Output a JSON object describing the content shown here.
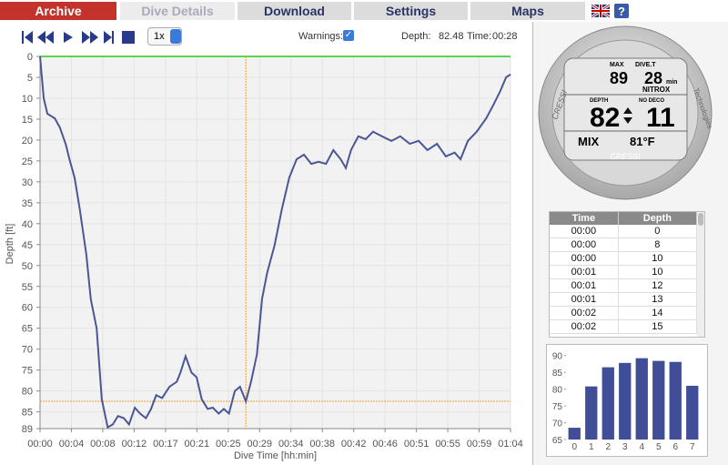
{
  "tabs": [
    "Archive",
    "Dive Details",
    "Download",
    "Settings",
    "Maps"
  ],
  "toolbar": {
    "speed": "1x",
    "warnings_label": "Warnings:",
    "depth_label": "Depth:",
    "depth": 82.48,
    "time_label": "Time:",
    "time": "00:28"
  },
  "chart_data": [
    {
      "type": "line",
      "ylabel": "Depth [ft]",
      "xlabel": "Dive Time [hh:min]",
      "color": "#4b5694",
      "surface_color": "#22cc22",
      "cursor_color": "#f0a030",
      "y_inverted": true,
      "grid": true,
      "x": [
        0,
        0.3,
        0.5,
        1,
        2,
        2.7,
        3.5,
        4,
        4.7,
        5.4,
        6.3,
        6.9,
        7.7,
        8.4,
        9.2,
        9.9,
        10.6,
        11.4,
        12.1,
        12.9,
        13.6,
        14.4,
        15.1,
        15.8,
        16.6,
        17.6,
        18.6,
        19.1,
        19.8,
        20.6,
        21.3,
        22,
        22.8,
        23.5,
        24.3,
        25,
        25.7,
        26.5,
        27.2,
        28,
        28.7,
        29.5,
        30.2,
        30.9,
        31.9,
        32.9,
        33.9,
        34.9,
        35.9,
        36.9,
        37.9,
        38.9,
        39.9,
        40.9,
        41.6,
        42.3,
        43.3,
        44.3,
        45.3,
        46.5,
        47.8,
        49,
        50.3,
        51.5,
        52.7,
        54,
        55.2,
        56.4,
        57.2,
        58.2,
        59.4,
        60.7,
        61.7,
        62.6,
        63.4,
        64
      ],
      "values": [
        0,
        6,
        10,
        13.7,
        14.8,
        17,
        21,
        24.6,
        29,
        36.5,
        47.4,
        58,
        65,
        82,
        88.7,
        88,
        86,
        86.5,
        88,
        84,
        85.4,
        86.5,
        84.3,
        81,
        81.7,
        79,
        77.8,
        75.6,
        71.7,
        75.6,
        76.7,
        82,
        84.3,
        84,
        85.4,
        84.3,
        85.4,
        80,
        79,
        82.5,
        77.8,
        71.3,
        58,
        51.7,
        45.2,
        36.5,
        29,
        24.6,
        23.5,
        25.7,
        25.2,
        25.7,
        22.4,
        24.6,
        26.7,
        22.4,
        19.1,
        19.8,
        18,
        19.1,
        20.2,
        19.1,
        20.9,
        20.2,
        22.4,
        20.9,
        23.9,
        23,
        24.6,
        20.2,
        18,
        14.8,
        11.5,
        8.3,
        5,
        4.3
      ],
      "xlim": [
        0,
        64
      ],
      "ylim": [
        0,
        89
      ],
      "xticks": [
        {
          "value": 0,
          "label": "00:00"
        },
        {
          "value": 4.27,
          "label": "00:04"
        },
        {
          "value": 8.53,
          "label": "00:08"
        },
        {
          "value": 12.8,
          "label": "00:12"
        },
        {
          "value": 17.07,
          "label": "00:17"
        },
        {
          "value": 21.33,
          "label": "00:21"
        },
        {
          "value": 25.6,
          "label": "00:25"
        },
        {
          "value": 29.87,
          "label": "00:29"
        },
        {
          "value": 34.13,
          "label": "00:34"
        },
        {
          "value": 38.4,
          "label": "00:38"
        },
        {
          "value": 42.67,
          "label": "00:42"
        },
        {
          "value": 46.93,
          "label": "00:46"
        },
        {
          "value": 51.2,
          "label": "00:51"
        },
        {
          "value": 55.47,
          "label": "00:55"
        },
        {
          "value": 59.73,
          "label": "00:59"
        },
        {
          "value": 64,
          "label": "01:04"
        }
      ],
      "yticks": [
        0,
        5,
        10,
        15,
        20,
        25,
        30,
        35,
        40,
        45,
        50,
        55,
        60,
        65,
        70,
        75,
        80,
        85,
        89
      ]
    },
    {
      "type": "bar",
      "color": "#3f4e96",
      "categories": [
        "0",
        "1",
        "2",
        "3",
        "4",
        "5",
        "6",
        "7"
      ],
      "values": [
        68.5,
        80.8,
        86.5,
        87.8,
        89.2,
        88.4,
        88.1,
        81
      ],
      "ylim": [
        65,
        91
      ],
      "yticks": [
        65,
        70,
        75,
        80,
        85,
        90
      ]
    }
  ],
  "table": {
    "columns": [
      "Time",
      "Depth"
    ],
    "rows": [
      [
        "00:00",
        0
      ],
      [
        "00:00",
        8
      ],
      [
        "00:00",
        10
      ],
      [
        "00:01",
        10
      ],
      [
        "00:01",
        12
      ],
      [
        "00:01",
        13
      ],
      [
        "00:02",
        14
      ],
      [
        "00:02",
        15
      ]
    ]
  },
  "device": {
    "max": "MAX",
    "dive_t": "DIVE.T",
    "max_depth": 89,
    "dive_time": 28,
    "min": "min",
    "nitrox": "NITROX",
    "depth": "DEPTH",
    "current_depth": 82,
    "no_deco": "NO DECO",
    "ndl": 11,
    "mix": "MIX",
    "temp": "81°F",
    "brand": "CRESSI",
    "tech": "Technologies"
  }
}
